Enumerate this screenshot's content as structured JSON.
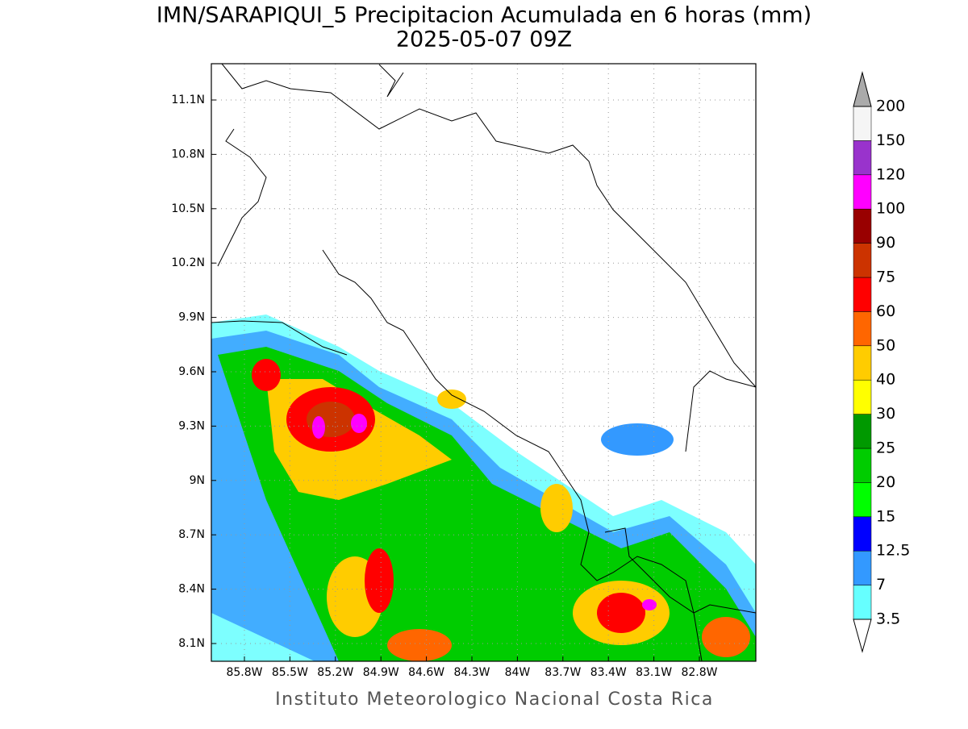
{
  "header": {
    "title": "IMN/SARAPIQUI_5 Precipitacion Acumulada en 6 horas (mm)",
    "subtitle": "2025-05-07 09Z"
  },
  "map": {
    "lat_labels": [
      "11.1N",
      "10.8N",
      "10.5N",
      "10.2N",
      "9.9N",
      "9.6N",
      "9.3N",
      "9N",
      "8.7N",
      "8.4N",
      "8.1N"
    ],
    "lon_labels": [
      "85.8W",
      "85.5W",
      "85.2W",
      "84.9W",
      "84.6W",
      "84.3W",
      "84W",
      "83.7W",
      "83.4W",
      "83.1W",
      "82.8W"
    ]
  },
  "colorbar": {
    "levels": [
      3.5,
      7,
      12.5,
      15,
      20,
      25,
      30,
      40,
      50,
      60,
      75,
      90,
      100,
      120,
      150,
      200
    ],
    "colors": [
      "#66ffff",
      "#3399ff",
      "#0000ff",
      "#00ff00",
      "#00cc00",
      "#009900",
      "#ffff00",
      "#ffcc00",
      "#ff6600",
      "#ff0000",
      "#cc3300",
      "#990000",
      "#ff00ff",
      "#9933cc",
      "#f5f5f5"
    ],
    "under_color": "#ffffff",
    "over_color": "#aaaaaa"
  },
  "footer": "Instituto Meteorologico Nacional Costa Rica"
}
